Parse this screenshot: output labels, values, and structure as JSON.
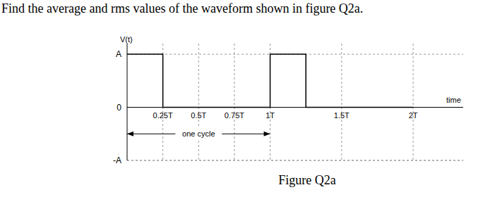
{
  "question": "Find the average and rms values of the waveform shown in figure Q2a.",
  "caption": "Figure Q2a",
  "chart_data": {
    "type": "line",
    "y_label": "V(t)",
    "x_label": "time",
    "x": [
      0,
      0.25,
      1,
      1.25,
      2
    ],
    "values": [
      1,
      0,
      1,
      0,
      0
    ],
    "color": "#000000",
    "line_style": "step",
    "xlim": [
      0,
      2.35
    ],
    "xticks": [
      {
        "value": 0.25,
        "label": "0.25T"
      },
      {
        "value": 0.5,
        "label": "0.5T"
      },
      {
        "value": 0.75,
        "label": "0.75T"
      },
      {
        "value": 1,
        "label": "1T"
      },
      {
        "value": 1.5,
        "label": "1.5T"
      },
      {
        "value": 2,
        "label": "2T"
      }
    ],
    "ylim": [
      -1,
      1.2
    ],
    "yticks": [
      {
        "value": -1,
        "label": "-A"
      },
      0,
      {
        "value": 1,
        "label": "A"
      }
    ],
    "grid": true,
    "annotations": [
      {
        "text": "one cycle",
        "x": [
          0,
          1
        ],
        "y": -0.5
      }
    ]
  }
}
